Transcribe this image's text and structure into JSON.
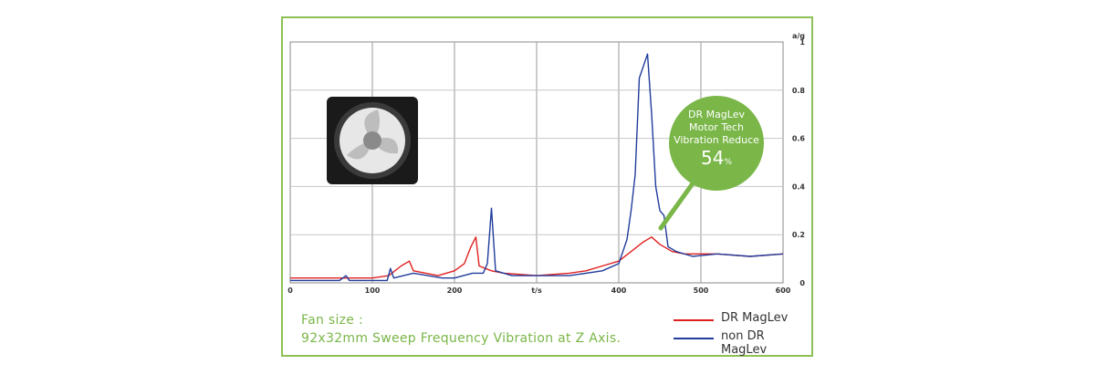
{
  "caption": {
    "line1": "Fan size :",
    "line2": "92x32mm Sweep Frequency Vibration at Z Axis."
  },
  "legend": {
    "dr_maglev": "DR MagLev",
    "non_dr_maglev": "non DR MagLev"
  },
  "callout": {
    "line1": "DR MagLev",
    "line2": "Motor Tech",
    "line3": "Vibration Reduce",
    "value": "54",
    "unit": "%"
  },
  "colors": {
    "dr_maglev": "#e02020",
    "non_dr_maglev": "#203c9c",
    "accent": "#7ab648"
  },
  "chart_data": {
    "type": "line",
    "xlabel": "t/s",
    "ylabel": "a/g",
    "xlim": [
      0,
      600
    ],
    "ylim": [
      0,
      1
    ],
    "x_ticks": [
      "0",
      "100",
      "200",
      "t/s",
      "400",
      "500",
      "600"
    ],
    "y_ticks": [
      "0",
      "0.2",
      "0.4",
      "0.6",
      "0.8",
      "1"
    ],
    "grid": true,
    "series": [
      {
        "name": "DR MagLev",
        "points": [
          [
            0,
            0.02
          ],
          [
            50,
            0.02
          ],
          [
            100,
            0.02
          ],
          [
            120,
            0.03
          ],
          [
            135,
            0.07
          ],
          [
            145,
            0.09
          ],
          [
            150,
            0.05
          ],
          [
            165,
            0.04
          ],
          [
            180,
            0.03
          ],
          [
            200,
            0.05
          ],
          [
            212,
            0.08
          ],
          [
            220,
            0.15
          ],
          [
            226,
            0.19
          ],
          [
            230,
            0.07
          ],
          [
            245,
            0.05
          ],
          [
            260,
            0.04
          ],
          [
            300,
            0.03
          ],
          [
            340,
            0.04
          ],
          [
            360,
            0.05
          ],
          [
            380,
            0.07
          ],
          [
            400,
            0.09
          ],
          [
            415,
            0.13
          ],
          [
            430,
            0.17
          ],
          [
            440,
            0.19
          ],
          [
            450,
            0.16
          ],
          [
            465,
            0.13
          ],
          [
            480,
            0.12
          ],
          [
            520,
            0.12
          ],
          [
            560,
            0.11
          ],
          [
            600,
            0.12
          ]
        ]
      },
      {
        "name": "non DR MagLev",
        "points": [
          [
            0,
            0.01
          ],
          [
            60,
            0.01
          ],
          [
            68,
            0.03
          ],
          [
            72,
            0.01
          ],
          [
            100,
            0.01
          ],
          [
            118,
            0.01
          ],
          [
            122,
            0.06
          ],
          [
            126,
            0.02
          ],
          [
            150,
            0.04
          ],
          [
            185,
            0.02
          ],
          [
            200,
            0.02
          ],
          [
            222,
            0.04
          ],
          [
            235,
            0.04
          ],
          [
            240,
            0.08
          ],
          [
            245,
            0.31
          ],
          [
            250,
            0.05
          ],
          [
            270,
            0.03
          ],
          [
            300,
            0.03
          ],
          [
            340,
            0.03
          ],
          [
            380,
            0.05
          ],
          [
            400,
            0.08
          ],
          [
            410,
            0.18
          ],
          [
            415,
            0.3
          ],
          [
            420,
            0.45
          ],
          [
            425,
            0.85
          ],
          [
            430,
            0.9
          ],
          [
            435,
            0.95
          ],
          [
            440,
            0.7
          ],
          [
            445,
            0.4
          ],
          [
            450,
            0.3
          ],
          [
            455,
            0.28
          ],
          [
            460,
            0.15
          ],
          [
            470,
            0.13
          ],
          [
            490,
            0.11
          ],
          [
            520,
            0.12
          ],
          [
            560,
            0.11
          ],
          [
            600,
            0.12
          ]
        ]
      }
    ]
  }
}
